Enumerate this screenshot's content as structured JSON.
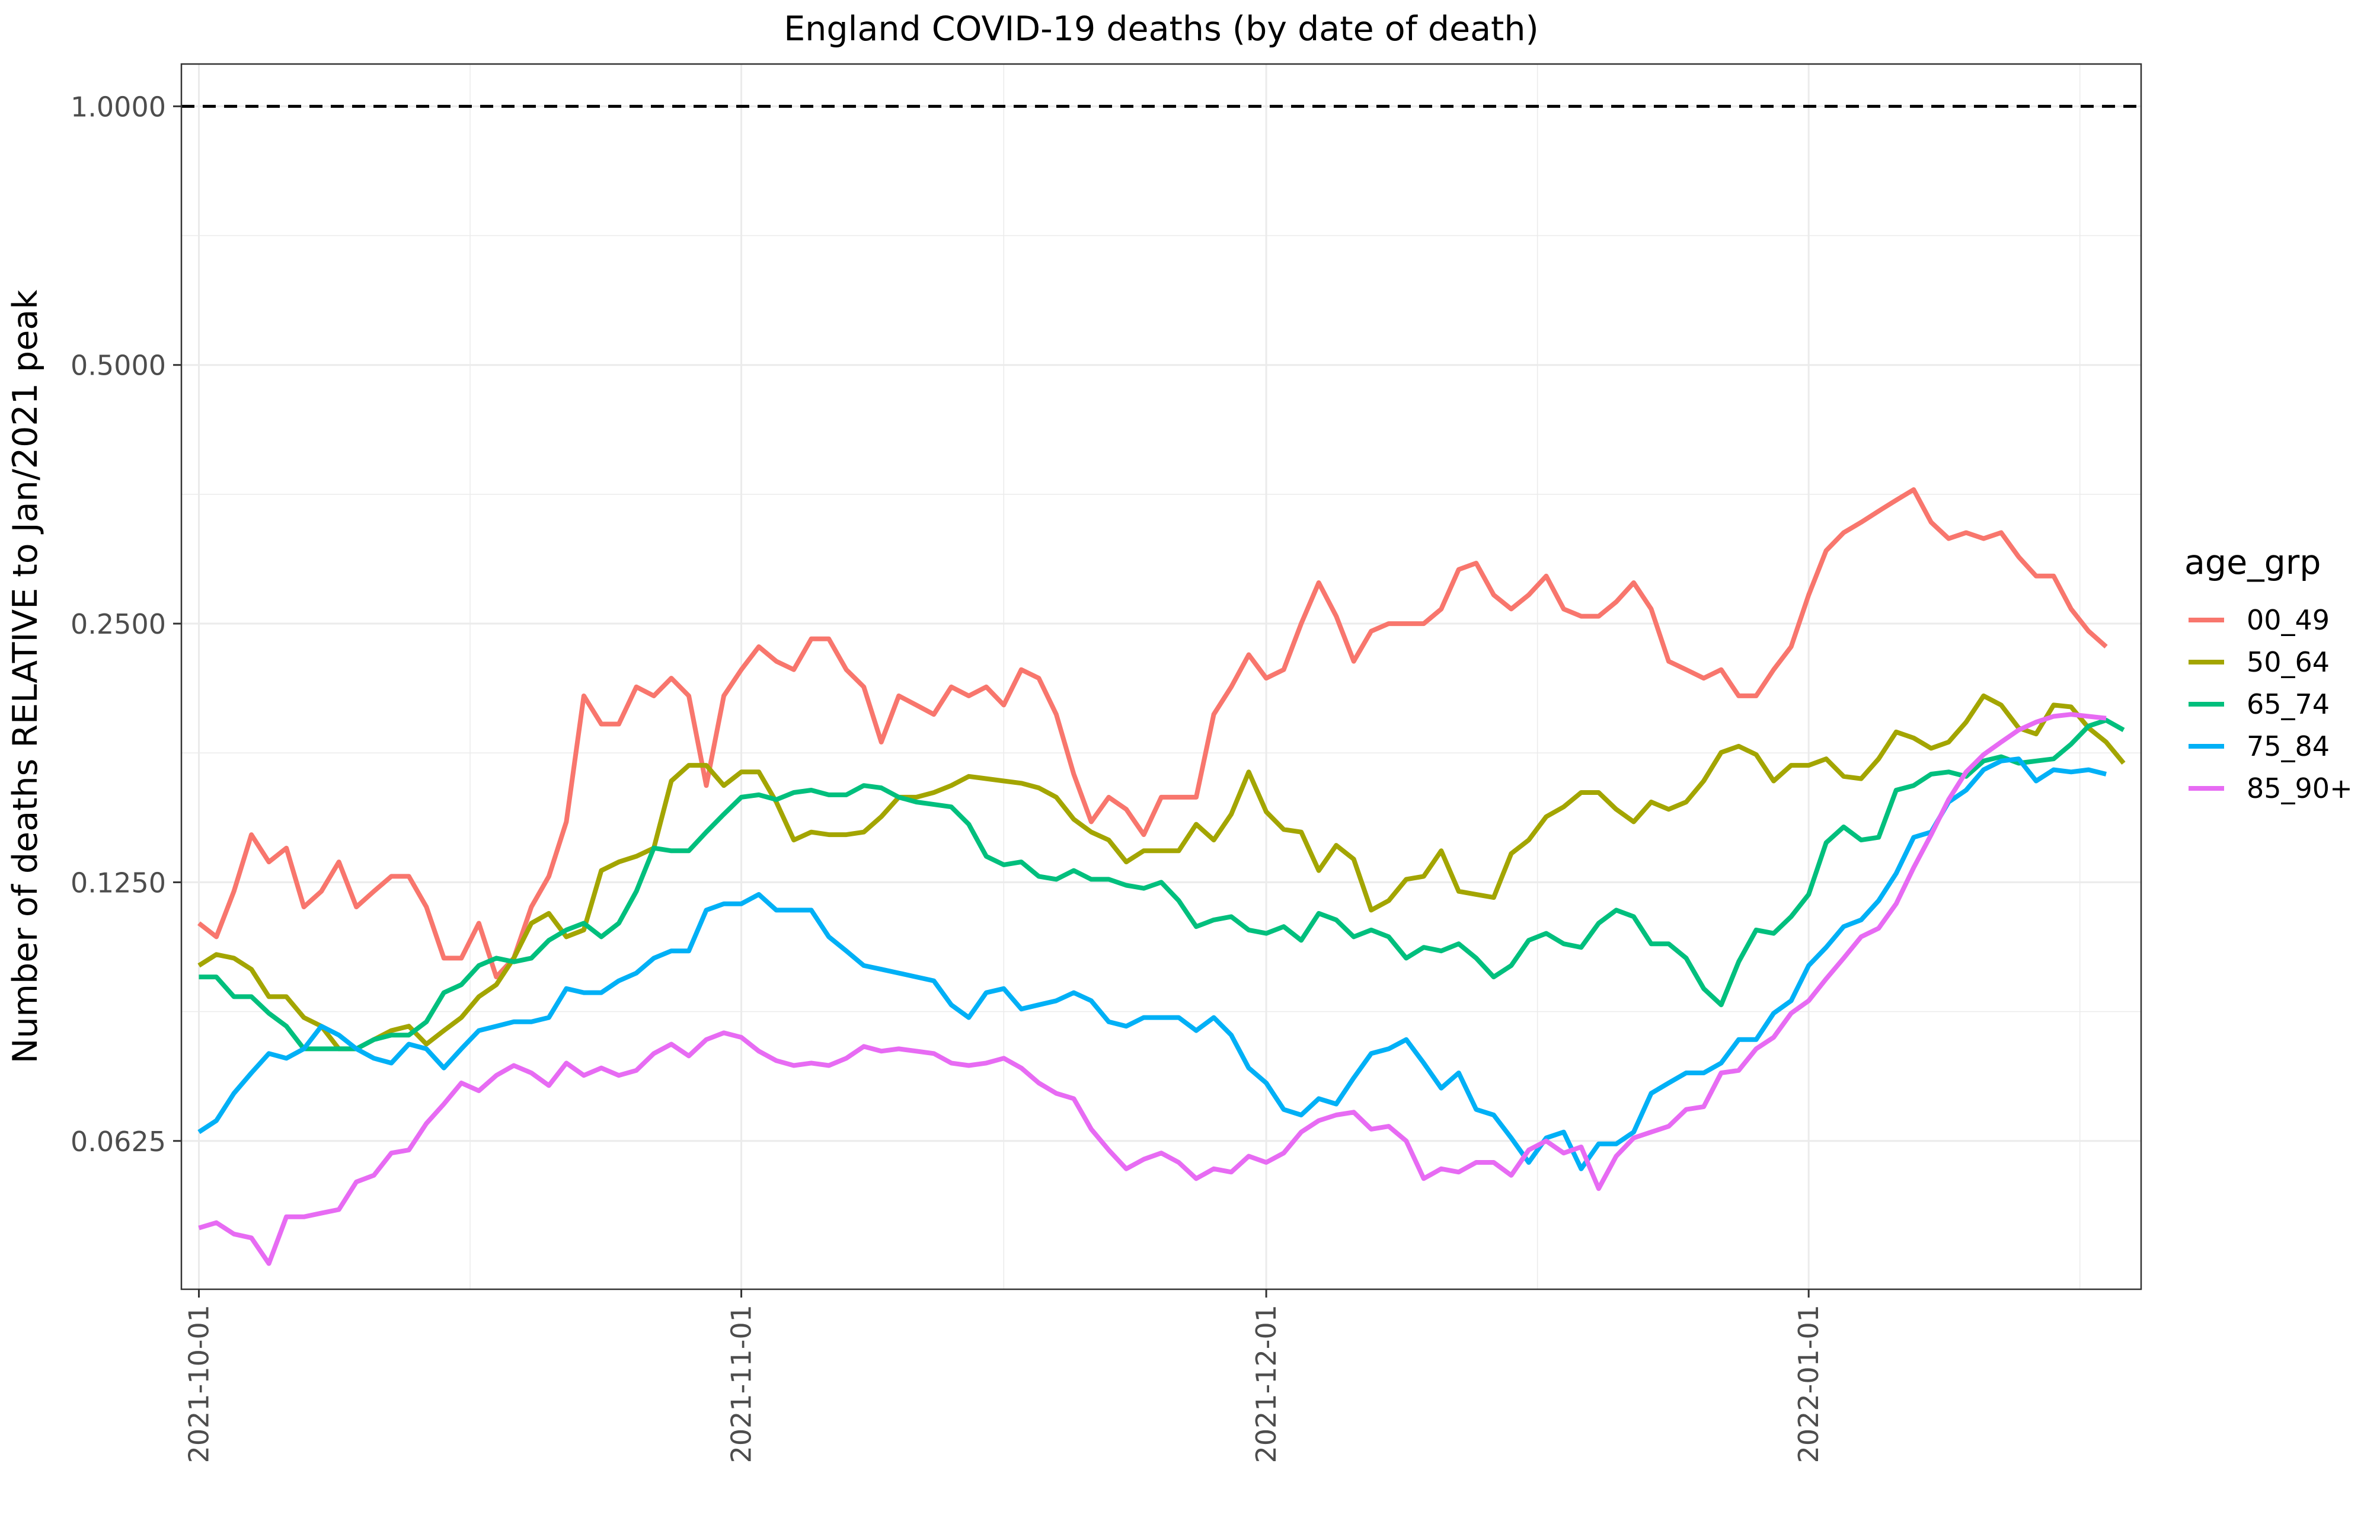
{
  "chart_data": {
    "type": "line",
    "title": "England COVID-19 deaths (by date of death)",
    "xlabel": "",
    "ylabel": "Number of deaths RELATIVE to Jan/2021 peak",
    "y_scale": "log2",
    "ylim": [
      0.042,
      1.12
    ],
    "xlim": [
      "2021-09-30",
      "2022-01-20"
    ],
    "x_ticks": [
      "2021-10-01",
      "2021-11-01",
      "2021-12-01",
      "2022-01-01"
    ],
    "y_ticks": [
      0.0625,
      0.125,
      0.25,
      0.5,
      1.0
    ],
    "y_tick_labels": [
      "0.0625",
      "0.1250",
      "0.2500",
      "0.5000",
      "1.0000"
    ],
    "reference_line": {
      "y": 1.0,
      "style": "dashed",
      "color": "#000000"
    },
    "grid": true,
    "legend": {
      "title": "age_grp",
      "position": "right"
    },
    "x_start": "2021-10-01",
    "x_step_days": 1,
    "series": [
      {
        "name": "00_49",
        "color": "#F8766D",
        "values": [
          0.112,
          0.108,
          0.122,
          0.142,
          0.132,
          0.137,
          0.117,
          0.122,
          0.132,
          0.117,
          0.122,
          0.127,
          0.127,
          0.117,
          0.102,
          0.102,
          0.112,
          0.097,
          0.102,
          0.117,
          0.127,
          0.147,
          0.206,
          0.191,
          0.191,
          0.211,
          0.206,
          0.216,
          0.206,
          0.162,
          0.206,
          0.221,
          0.235,
          0.226,
          0.221,
          0.24,
          0.24,
          0.221,
          0.211,
          0.182,
          0.206,
          0.201,
          0.196,
          0.211,
          0.206,
          0.211,
          0.201,
          0.221,
          0.216,
          0.196,
          0.167,
          0.147,
          0.157,
          0.152,
          0.142,
          0.157,
          0.157,
          0.157,
          0.196,
          0.211,
          0.23,
          0.216,
          0.221,
          0.25,
          0.279,
          0.255,
          0.226,
          0.245,
          0.25,
          0.25,
          0.25,
          0.26,
          0.289,
          0.294,
          0.27,
          0.26,
          0.27,
          0.284,
          0.26,
          0.255,
          0.255,
          0.265,
          0.279,
          0.26,
          0.226,
          0.221,
          0.216,
          0.221,
          0.206,
          0.206,
          0.221,
          0.235,
          0.27,
          0.304,
          0.319,
          0.328,
          0.338,
          0.348,
          0.358,
          0.328,
          0.314,
          0.319,
          0.314,
          0.319,
          0.299,
          0.284,
          0.284,
          0.26,
          0.245,
          0.235
        ]
      },
      {
        "name": "50_64",
        "color": "#A3A500",
        "values": [
          0.1,
          0.103,
          0.102,
          0.099,
          0.092,
          0.092,
          0.087,
          0.085,
          0.08,
          0.08,
          0.082,
          0.084,
          0.085,
          0.081,
          0.084,
          0.087,
          0.092,
          0.095,
          0.102,
          0.112,
          0.115,
          0.108,
          0.11,
          0.129,
          0.132,
          0.134,
          0.137,
          0.164,
          0.171,
          0.171,
          0.162,
          0.168,
          0.168,
          0.155,
          0.14,
          0.143,
          0.142,
          0.142,
          0.143,
          0.149,
          0.157,
          0.157,
          0.159,
          0.162,
          0.166,
          0.165,
          0.164,
          0.163,
          0.161,
          0.157,
          0.148,
          0.143,
          0.14,
          0.132,
          0.136,
          0.136,
          0.136,
          0.146,
          0.14,
          0.15,
          0.168,
          0.151,
          0.144,
          0.143,
          0.129,
          0.138,
          0.133,
          0.116,
          0.119,
          0.126,
          0.127,
          0.136,
          0.122,
          0.121,
          0.12,
          0.135,
          0.14,
          0.149,
          0.153,
          0.159,
          0.159,
          0.152,
          0.147,
          0.155,
          0.152,
          0.155,
          0.164,
          0.177,
          0.18,
          0.176,
          0.164,
          0.171,
          0.171,
          0.174,
          0.166,
          0.165,
          0.174,
          0.187,
          0.184,
          0.179,
          0.182,
          0.192,
          0.206,
          0.201,
          0.189,
          0.186,
          0.201,
          0.2,
          0.189,
          0.182,
          0.172
        ]
      },
      {
        "name": "65_74",
        "color": "#00BF7D",
        "values": [
          0.097,
          0.097,
          0.092,
          0.092,
          0.088,
          0.085,
          0.08,
          0.08,
          0.08,
          0.08,
          0.082,
          0.083,
          0.083,
          0.086,
          0.093,
          0.095,
          0.1,
          0.102,
          0.101,
          0.102,
          0.107,
          0.11,
          0.112,
          0.108,
          0.112,
          0.122,
          0.137,
          0.136,
          0.136,
          0.143,
          0.15,
          0.157,
          0.158,
          0.156,
          0.159,
          0.16,
          0.158,
          0.158,
          0.162,
          0.161,
          0.157,
          0.155,
          0.154,
          0.153,
          0.146,
          0.134,
          0.131,
          0.132,
          0.127,
          0.126,
          0.129,
          0.126,
          0.126,
          0.124,
          0.123,
          0.125,
          0.119,
          0.111,
          0.113,
          0.114,
          0.11,
          0.109,
          0.111,
          0.107,
          0.115,
          0.113,
          0.108,
          0.11,
          0.108,
          0.102,
          0.105,
          0.104,
          0.106,
          0.102,
          0.097,
          0.1,
          0.107,
          0.109,
          0.106,
          0.105,
          0.112,
          0.116,
          0.114,
          0.106,
          0.106,
          0.102,
          0.094,
          0.09,
          0.101,
          0.11,
          0.109,
          0.114,
          0.121,
          0.139,
          0.145,
          0.14,
          0.141,
          0.16,
          0.162,
          0.167,
          0.168,
          0.166,
          0.173,
          0.175,
          0.172,
          0.173,
          0.174,
          0.181,
          0.19,
          0.193,
          0.188
        ]
      },
      {
        "name": "75_84",
        "color": "#00B0F6",
        "values": [
          0.064,
          0.066,
          0.071,
          0.075,
          0.079,
          0.078,
          0.08,
          0.085,
          0.083,
          0.08,
          0.078,
          0.077,
          0.081,
          0.08,
          0.076,
          0.08,
          0.084,
          0.085,
          0.086,
          0.086,
          0.087,
          0.094,
          0.093,
          0.093,
          0.096,
          0.098,
          0.102,
          0.104,
          0.104,
          0.116,
          0.118,
          0.118,
          0.121,
          0.116,
          0.116,
          0.116,
          0.108,
          0.104,
          0.1,
          0.099,
          0.098,
          0.097,
          0.096,
          0.09,
          0.087,
          0.093,
          0.094,
          0.089,
          0.09,
          0.091,
          0.093,
          0.091,
          0.086,
          0.085,
          0.087,
          0.087,
          0.087,
          0.084,
          0.087,
          0.083,
          0.076,
          0.073,
          0.068,
          0.067,
          0.07,
          0.069,
          0.074,
          0.079,
          0.08,
          0.082,
          0.077,
          0.072,
          0.075,
          0.068,
          0.067,
          0.063,
          0.059,
          0.063,
          0.064,
          0.058,
          0.062,
          0.062,
          0.064,
          0.071,
          0.073,
          0.075,
          0.075,
          0.077,
          0.082,
          0.082,
          0.088,
          0.091,
          0.1,
          0.105,
          0.111,
          0.113,
          0.119,
          0.128,
          0.141,
          0.143,
          0.155,
          0.16,
          0.169,
          0.173,
          0.174,
          0.164,
          0.169,
          0.168,
          0.169,
          0.167
        ]
      },
      {
        "name": "85_90+",
        "color": "#E76BF3",
        "values": [
          0.0495,
          0.0502,
          0.0487,
          0.0482,
          0.045,
          0.051,
          0.051,
          0.0515,
          0.052,
          0.056,
          0.057,
          0.0605,
          0.061,
          0.0655,
          0.069,
          0.073,
          0.0715,
          0.0745,
          0.0765,
          0.075,
          0.0725,
          0.077,
          0.0745,
          0.076,
          0.0745,
          0.0755,
          0.079,
          0.081,
          0.0785,
          0.082,
          0.0835,
          0.0825,
          0.0795,
          0.0775,
          0.0765,
          0.077,
          0.0765,
          0.078,
          0.0805,
          0.0795,
          0.08,
          0.0795,
          0.079,
          0.077,
          0.0765,
          0.077,
          0.078,
          0.076,
          0.073,
          0.071,
          0.07,
          0.0645,
          0.061,
          0.058,
          0.0595,
          0.0605,
          0.059,
          0.0565,
          0.058,
          0.0575,
          0.06,
          0.059,
          0.0605,
          0.064,
          0.066,
          0.067,
          0.0675,
          0.0645,
          0.065,
          0.0625,
          0.0565,
          0.058,
          0.0575,
          0.059,
          0.059,
          0.057,
          0.061,
          0.0625,
          0.0605,
          0.0615,
          0.055,
          0.06,
          0.063,
          0.064,
          0.065,
          0.068,
          0.0685,
          0.075,
          0.0755,
          0.08,
          0.0825,
          0.088,
          0.091,
          0.0965,
          0.102,
          0.108,
          0.1105,
          0.118,
          0.13,
          0.142,
          0.156,
          0.168,
          0.176,
          0.182,
          0.188,
          0.192,
          0.195,
          0.196,
          0.195,
          0.194
        ]
      }
    ]
  }
}
